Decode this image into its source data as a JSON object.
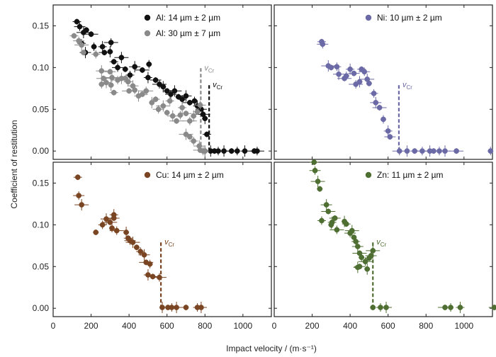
{
  "ylabel": "Coefficient of restitution",
  "xlabel": "Impact velocity / (m·s⁻¹)",
  "vcr_label": "v",
  "vcr_sub": "Cr",
  "chart_data": [
    {
      "type": "scatter",
      "panel": "top-left",
      "xlim": [
        0,
        1150
      ],
      "ylim": [
        -0.01,
        0.175
      ],
      "xticks": [
        "0",
        "200",
        "400",
        "600",
        "800",
        "1000"
      ],
      "yticks": [
        "0.00",
        "0.05",
        "0.10",
        "0.15"
      ],
      "legend_position": "top-right",
      "series": [
        {
          "name": "Al: 14 µm ± 2 µm",
          "color": "#111111",
          "points": [
            [
              125,
              0.155
            ],
            [
              140,
              0.149
            ],
            [
              160,
              0.142
            ],
            [
              175,
              0.145
            ],
            [
              150,
              0.129
            ],
            [
              170,
              0.118
            ],
            [
              200,
              0.14
            ],
            [
              215,
              0.125
            ],
            [
              260,
              0.125
            ],
            [
              270,
              0.118
            ],
            [
              305,
              0.13
            ],
            [
              300,
              0.119
            ],
            [
              320,
              0.107
            ],
            [
              340,
              0.1
            ],
            [
              360,
              0.112
            ],
            [
              380,
              0.098
            ],
            [
              405,
              0.091
            ],
            [
              430,
              0.101
            ],
            [
              470,
              0.097
            ],
            [
              505,
              0.104
            ],
            [
              500,
              0.088
            ],
            [
              540,
              0.085
            ],
            [
              560,
              0.08
            ],
            [
              580,
              0.077
            ],
            [
              600,
              0.072
            ],
            [
              620,
              0.068
            ],
            [
              640,
              0.072
            ],
            [
              660,
              0.065
            ],
            [
              680,
              0.062
            ],
            [
              700,
              0.066
            ],
            [
              720,
              0.058
            ],
            [
              745,
              0.06
            ],
            [
              760,
              0.054
            ],
            [
              780,
              0.05
            ],
            [
              790,
              0.044
            ],
            [
              800,
              0.039
            ],
            [
              810,
              0.02
            ],
            [
              800,
              0.0
            ],
            [
              830,
              0.0
            ],
            [
              850,
              0.0
            ],
            [
              870,
              0.0
            ],
            [
              900,
              0.0
            ],
            [
              940,
              0.0
            ],
            [
              970,
              0.0
            ],
            [
              1010,
              0.0
            ],
            [
              1060,
              0.0
            ],
            [
              1075,
              0.0
            ]
          ]
        },
        {
          "name": "Al: 30 µm ± 7 µm",
          "color": "#8a8a8a",
          "points": [
            [
              110,
              0.138
            ],
            [
              135,
              0.132
            ],
            [
              150,
              0.127
            ],
            [
              160,
              0.118
            ],
            [
              225,
              0.116
            ],
            [
              255,
              0.096
            ],
            [
              265,
              0.087
            ],
            [
              255,
              0.08
            ],
            [
              280,
              0.082
            ],
            [
              300,
              0.095
            ],
            [
              310,
              0.088
            ],
            [
              305,
              0.079
            ],
            [
              320,
              0.07
            ],
            [
              340,
              0.085
            ],
            [
              360,
              0.087
            ],
            [
              380,
              0.087
            ],
            [
              395,
              0.083
            ],
            [
              420,
              0.078
            ],
            [
              400,
              0.072
            ],
            [
              430,
              0.073
            ],
            [
              450,
              0.066
            ],
            [
              470,
              0.068
            ],
            [
              490,
              0.072
            ],
            [
              520,
              0.058
            ],
            [
              540,
              0.062
            ],
            [
              555,
              0.05
            ],
            [
              580,
              0.054
            ],
            [
              600,
              0.046
            ],
            [
              615,
              0.06
            ],
            [
              630,
              0.042
            ],
            [
              650,
              0.036
            ],
            [
              670,
              0.043
            ],
            [
              680,
              0.052
            ],
            [
              700,
              0.045
            ],
            [
              720,
              0.036
            ],
            [
              740,
              0.042
            ],
            [
              760,
              0.047
            ],
            [
              775,
              0.055
            ],
            [
              700,
              0.02
            ],
            [
              720,
              0.017
            ],
            [
              740,
              0.012
            ],
            [
              770,
              0.006
            ],
            [
              775,
              0.001
            ],
            [
              790,
              0.0
            ],
            [
              800,
              0.0
            ]
          ]
        }
      ],
      "vcr": [
        {
          "x": 778,
          "y_top": 0.1,
          "color": "#8a8a8a"
        },
        {
          "x": 822,
          "y_top": 0.08,
          "color": "#111111"
        }
      ]
    },
    {
      "type": "scatter",
      "panel": "top-right",
      "xlim": [
        0,
        1150
      ],
      "ylim": [
        -0.01,
        0.175
      ],
      "xticks": [
        "0",
        "200",
        "400",
        "600",
        "800",
        "1000"
      ],
      "yticks": [
        "0.00",
        "0.05",
        "0.10",
        "0.15"
      ],
      "legend_position": "top-right",
      "series": [
        {
          "name": "Ni: 10 µm ± 2 µm",
          "color": "#6b6aa6",
          "points": [
            [
              250,
              0.131
            ],
            [
              255,
              0.128
            ],
            [
              285,
              0.102
            ],
            [
              300,
              0.1
            ],
            [
              330,
              0.101
            ],
            [
              340,
              0.092
            ],
            [
              370,
              0.087
            ],
            [
              380,
              0.09
            ],
            [
              400,
              0.098
            ],
            [
              420,
              0.093
            ],
            [
              430,
              0.08
            ],
            [
              450,
              0.083
            ],
            [
              460,
              0.098
            ],
            [
              475,
              0.095
            ],
            [
              490,
              0.086
            ],
            [
              500,
              0.081
            ],
            [
              525,
              0.069
            ],
            [
              535,
              0.058
            ],
            [
              555,
              0.052
            ],
            [
              575,
              0.038
            ],
            [
              600,
              0.024
            ],
            [
              610,
              0.017
            ],
            [
              660,
              0.0
            ],
            [
              700,
              0.0
            ],
            [
              740,
              0.0
            ],
            [
              780,
              0.0
            ],
            [
              820,
              0.0
            ],
            [
              840,
              0.0
            ],
            [
              870,
              0.0
            ],
            [
              900,
              0.0
            ],
            [
              960,
              0.0
            ],
            [
              1140,
              0.0
            ]
          ]
        }
      ],
      "vcr": [
        {
          "x": 657,
          "y_top": 0.08,
          "color": "#6b6aa6"
        }
      ]
    },
    {
      "type": "scatter",
      "panel": "bottom-left",
      "xlim": [
        0,
        1150
      ],
      "ylim": [
        -0.01,
        0.175
      ],
      "xticks": [
        "0",
        "200",
        "400",
        "600",
        "800",
        "1000"
      ],
      "yticks": [
        "0.00",
        "0.05",
        "0.10",
        "0.15"
      ],
      "legend_position": "top-right",
      "series": [
        {
          "name": "Cu: 14 µm ± 2 µm",
          "color": "#7a4522",
          "points": [
            [
              130,
              0.157
            ],
            [
              135,
              0.135
            ],
            [
              150,
              0.124
            ],
            [
              225,
              0.091
            ],
            [
              260,
              0.1
            ],
            [
              280,
              0.107
            ],
            [
              300,
              0.103
            ],
            [
              310,
              0.096
            ],
            [
              320,
              0.112
            ],
            [
              320,
              0.108
            ],
            [
              335,
              0.093
            ],
            [
              385,
              0.091
            ],
            [
              395,
              0.084
            ],
            [
              405,
              0.081
            ],
            [
              420,
              0.079
            ],
            [
              440,
              0.073
            ],
            [
              460,
              0.068
            ],
            [
              480,
              0.064
            ],
            [
              490,
              0.055
            ],
            [
              510,
              0.053
            ],
            [
              500,
              0.04
            ],
            [
              525,
              0.038
            ],
            [
              560,
              0.037
            ],
            [
              575,
              0.001
            ],
            [
              605,
              0.001
            ],
            [
              625,
              0.001
            ],
            [
              650,
              0.001
            ],
            [
              700,
              0.001
            ],
            [
              760,
              0.001
            ],
            [
              780,
              0.001
            ]
          ]
        }
      ],
      "vcr": [
        {
          "x": 568,
          "y_top": 0.08,
          "color": "#7a4522"
        }
      ]
    },
    {
      "type": "scatter",
      "panel": "bottom-right",
      "xlim": [
        0,
        1150
      ],
      "ylim": [
        -0.01,
        0.175
      ],
      "xticks": [
        "0",
        "200",
        "400",
        "600",
        "800",
        "1000"
      ],
      "yticks": [
        "0.00",
        "0.05",
        "0.10",
        "0.15"
      ],
      "legend_position": "top-right",
      "series": [
        {
          "name": "Zn: 11 µm ± 2 µm",
          "color": "#4e6e32",
          "points": [
            [
              210,
              0.175
            ],
            [
              215,
              0.165
            ],
            [
              230,
              0.152
            ],
            [
              240,
              0.143
            ],
            [
              250,
              0.105
            ],
            [
              275,
              0.124
            ],
            [
              285,
              0.116
            ],
            [
              300,
              0.1
            ],
            [
              305,
              0.103
            ],
            [
              320,
              0.108
            ],
            [
              330,
              0.094
            ],
            [
              370,
              0.104
            ],
            [
              380,
              0.101
            ],
            [
              400,
              0.09
            ],
            [
              410,
              0.093
            ],
            [
              420,
              0.085
            ],
            [
              430,
              0.08
            ],
            [
              440,
              0.074
            ],
            [
              450,
              0.066
            ],
            [
              460,
              0.061
            ],
            [
              440,
              0.049
            ],
            [
              450,
              0.05
            ],
            [
              480,
              0.056
            ],
            [
              490,
              0.047
            ],
            [
              500,
              0.06
            ],
            [
              510,
              0.063
            ],
            [
              520,
              0.069
            ],
            [
              520,
              0.001
            ],
            [
              560,
              0.001
            ],
            [
              590,
              0.001
            ],
            [
              900,
              0.001
            ],
            [
              930,
              0.001
            ],
            [
              980,
              0.001
            ],
            [
              1160,
              0.001
            ]
          ]
        }
      ],
      "vcr": [
        {
          "x": 520,
          "y_top": 0.08,
          "color": "#4e6e32"
        }
      ]
    }
  ]
}
